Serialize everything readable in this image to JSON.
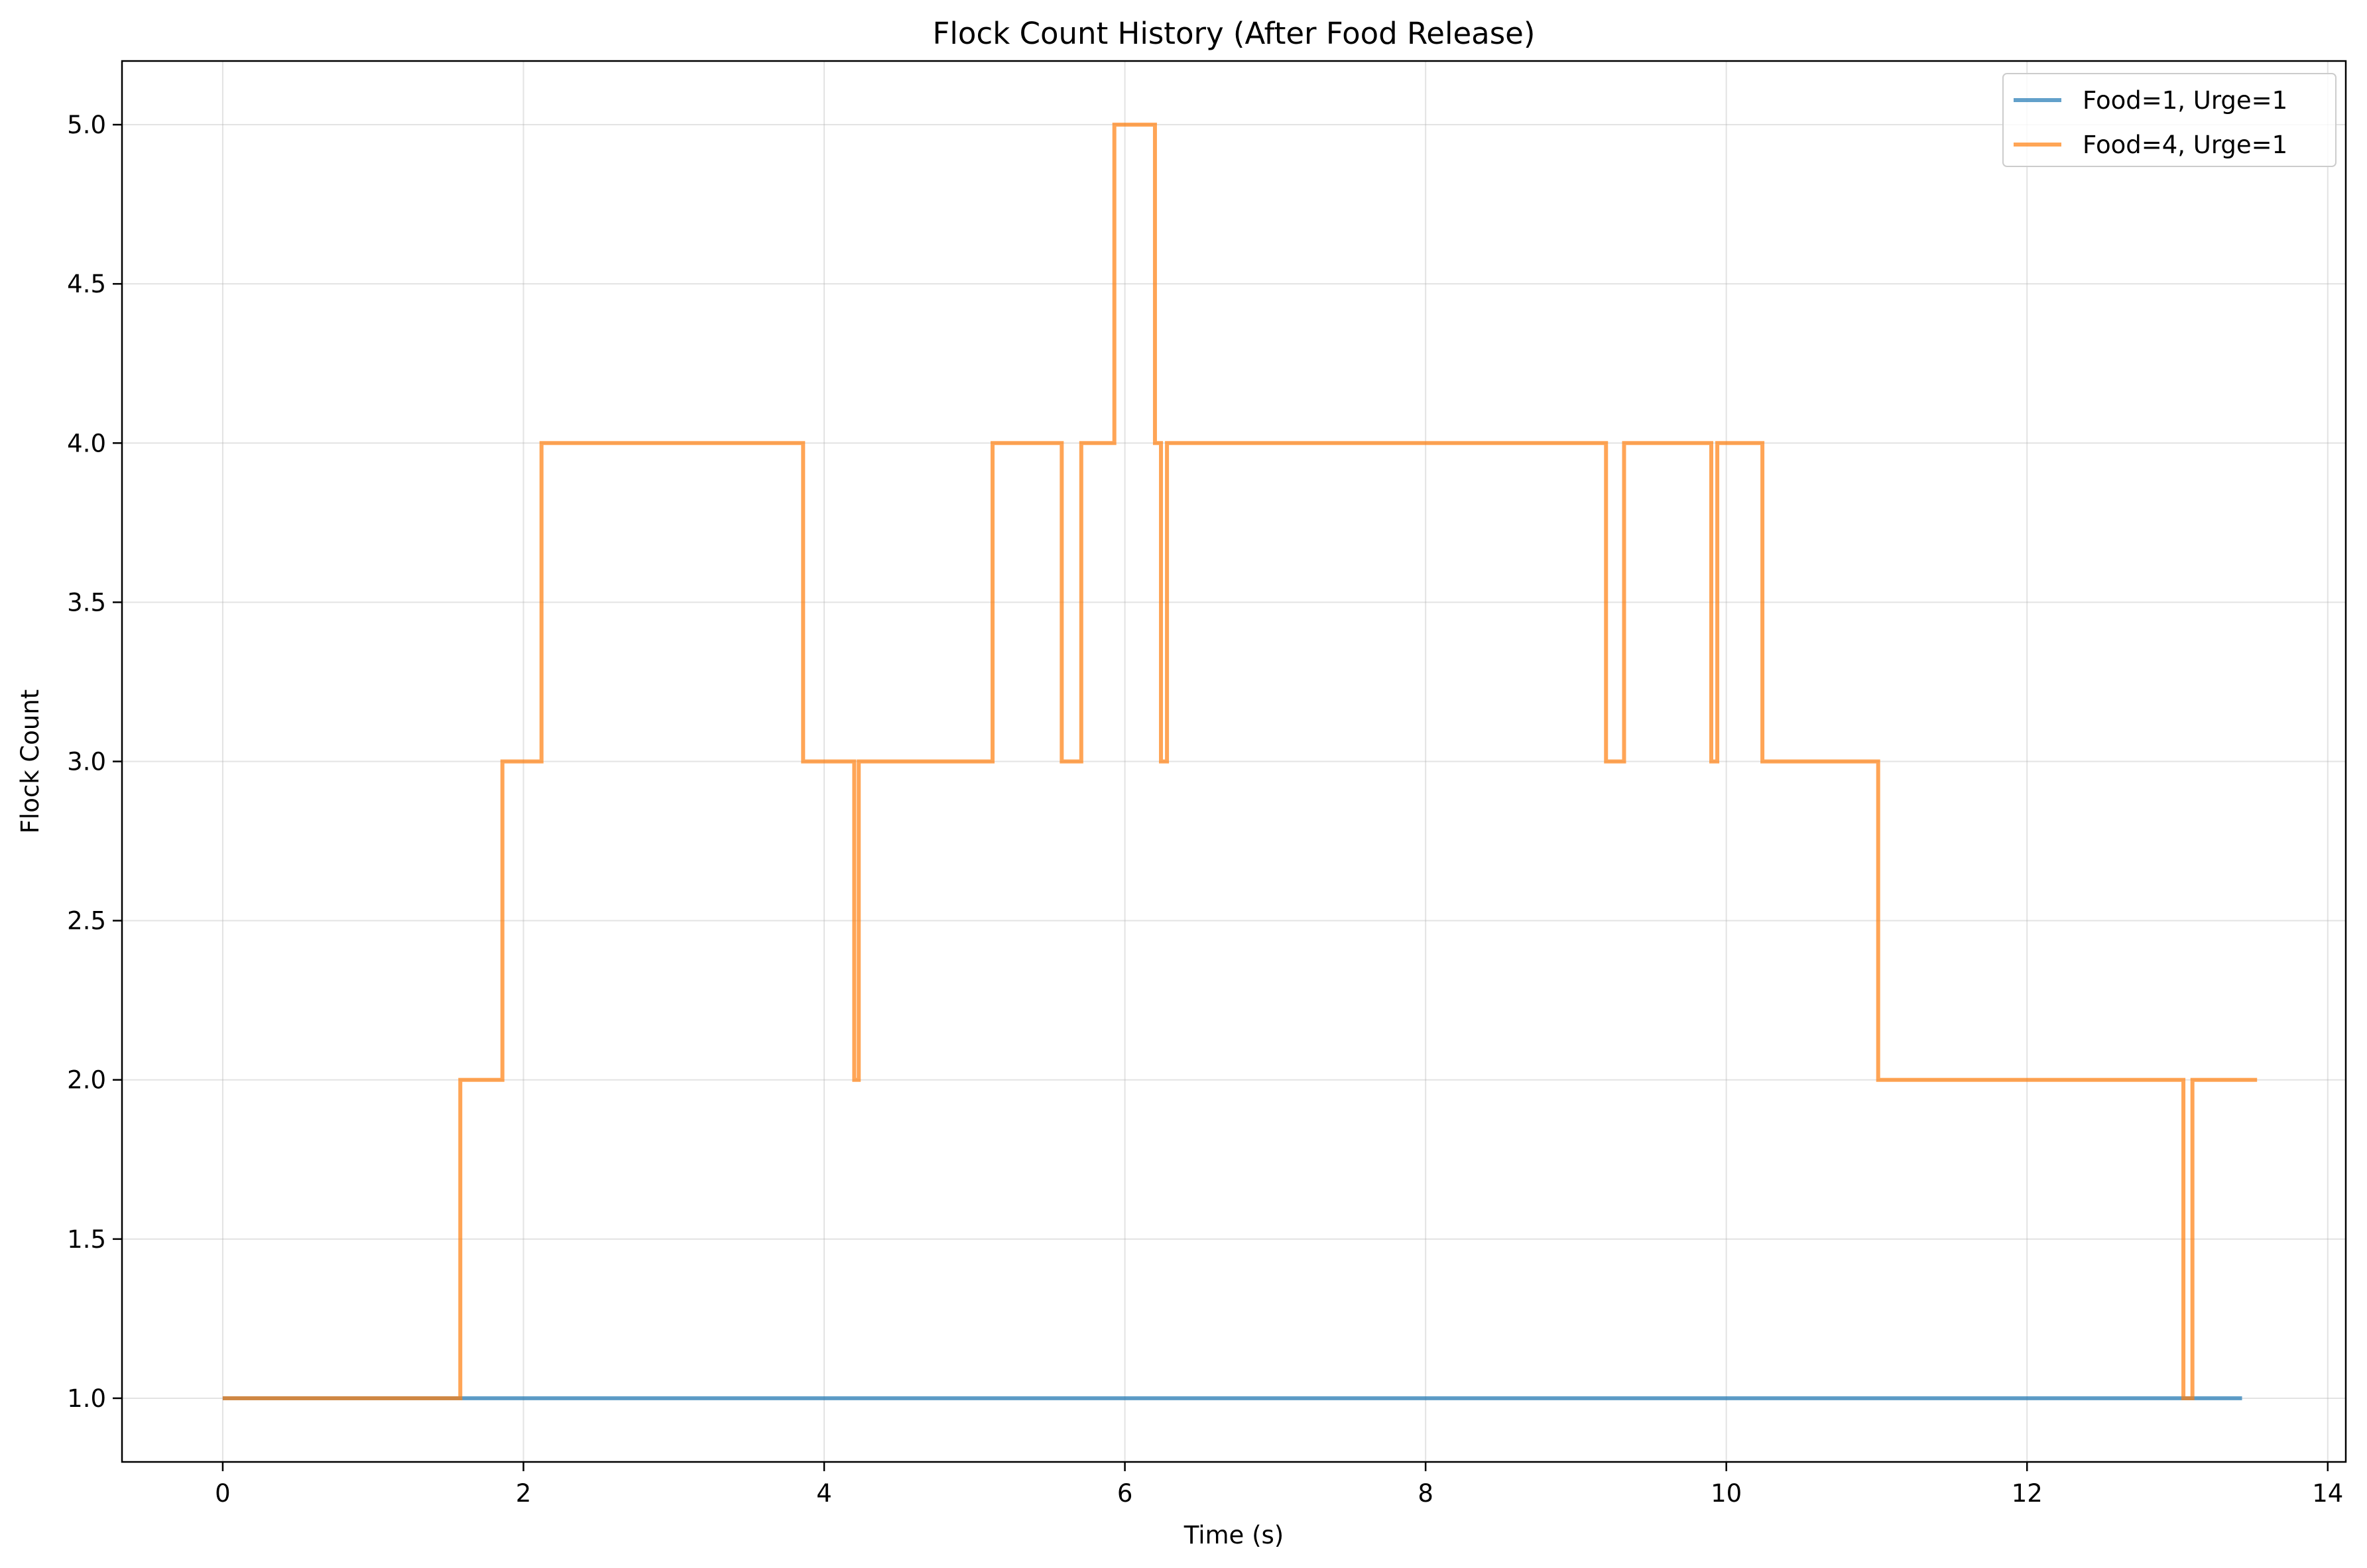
{
  "chart_data": {
    "type": "line",
    "title": "Flock Count History (After Food Release)",
    "xlabel": "Time (s)",
    "ylabel": "Flock Count",
    "xlim": [
      -0.67,
      14.12
    ],
    "ylim": [
      0.8,
      5.2
    ],
    "xticks": [
      0,
      2,
      4,
      6,
      8,
      10,
      12,
      14
    ],
    "xtick_labels": [
      "0",
      "2",
      "4",
      "6",
      "8",
      "10",
      "12",
      "14"
    ],
    "yticks": [
      1.0,
      1.5,
      2.0,
      2.5,
      3.0,
      3.5,
      4.0,
      4.5,
      5.0
    ],
    "ytick_labels": [
      "1.0",
      "1.5",
      "2.0",
      "2.5",
      "3.0",
      "3.5",
      "4.0",
      "4.5",
      "5.0"
    ],
    "grid": true,
    "legend_position": "top-right",
    "series": [
      {
        "name": "Food=1, Urge=1",
        "color": "#1f77b4",
        "step": true,
        "x": [
          0,
          13.43
        ],
        "y": [
          1,
          1
        ]
      },
      {
        "name": "Food=4, Urge=1",
        "color": "#ff7f0e",
        "step": true,
        "x": [
          0,
          1.58,
          1.86,
          2.12,
          3.86,
          4.2,
          4.23,
          5.12,
          5.58,
          5.71,
          5.93,
          6.2,
          6.24,
          6.26,
          6.28,
          9.2,
          9.32,
          9.9,
          9.92,
          9.94,
          10.24,
          11.01,
          13.04,
          13.1,
          13.53
        ],
        "y": [
          1,
          2,
          3,
          4,
          3,
          2,
          3,
          4,
          3,
          4,
          5,
          4,
          3,
          3,
          4,
          3,
          4,
          3,
          3,
          4,
          3,
          2,
          1,
          2,
          2
        ]
      }
    ]
  }
}
